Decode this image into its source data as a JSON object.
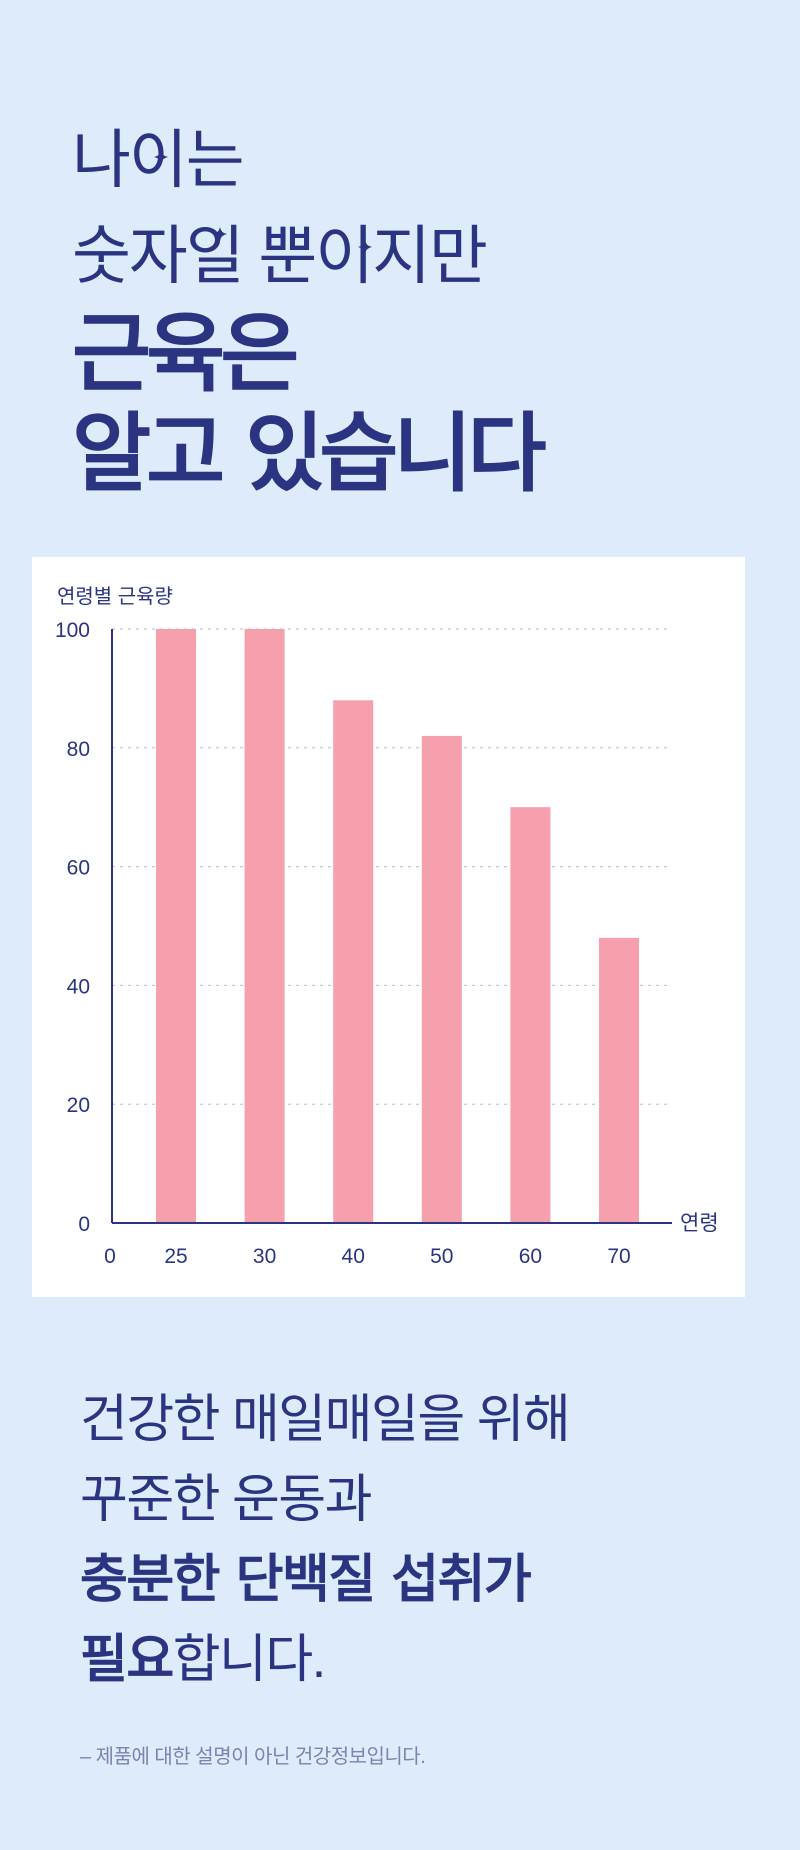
{
  "headline": {
    "line1": "나이는",
    "line2": "숫자일 뿐이지만",
    "line3": "근육은",
    "line4": "알고 있습니다"
  },
  "chart_data": {
    "type": "bar",
    "title": "연령별 근육량",
    "xlabel": "연령",
    "ylabel": "",
    "x_origin_label": "0",
    "categories": [
      "25",
      "30",
      "40",
      "50",
      "60",
      "70"
    ],
    "values": [
      100,
      100,
      88,
      82,
      70,
      48
    ],
    "yticks": [
      0,
      20,
      40,
      60,
      80,
      100
    ],
    "ylim": [
      0,
      100
    ],
    "grid": true,
    "bar_color": "#f6a0ad",
    "axis_color": "#2b3480"
  },
  "bottom": {
    "line1": "건강한 매일매일을 위해",
    "line2": "꾸준한 운동과",
    "line3": "충분한 단백질 섭취가",
    "line4_bold": "필요",
    "line4_rest": "합니다."
  },
  "note": "– 제품에 대한 설명이 아닌 건강정보입니다.",
  "colors": {
    "background": "#ddebfb",
    "text": "#2b3480",
    "sparkle": "#2b3480"
  }
}
